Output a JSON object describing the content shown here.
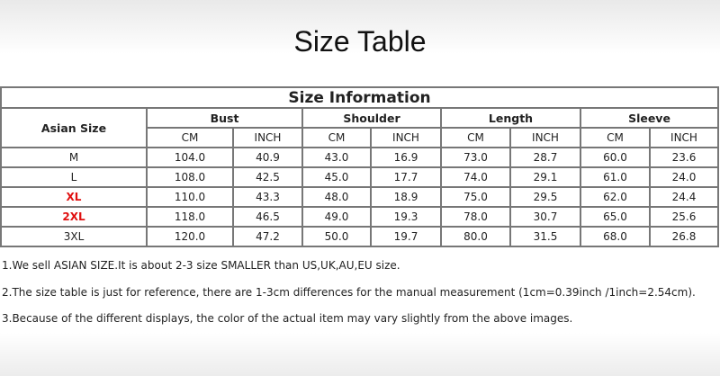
{
  "title": "Size Table",
  "table": {
    "caption": "Size Information",
    "size_header": "Asian Size",
    "groups": [
      "Bust",
      "Shoulder",
      "Length",
      "Sleeve"
    ],
    "units": [
      "CM",
      "INCH"
    ],
    "rows": [
      {
        "size": "M",
        "highlight": false,
        "values": [
          "104.0",
          "40.9",
          "43.0",
          "16.9",
          "73.0",
          "28.7",
          "60.0",
          "23.6"
        ]
      },
      {
        "size": "L",
        "highlight": false,
        "values": [
          "108.0",
          "42.5",
          "45.0",
          "17.7",
          "74.0",
          "29.1",
          "61.0",
          "24.0"
        ]
      },
      {
        "size": "XL",
        "highlight": true,
        "values": [
          "110.0",
          "43.3",
          "48.0",
          "18.9",
          "75.0",
          "29.5",
          "62.0",
          "24.4"
        ]
      },
      {
        "size": "2XL",
        "highlight": true,
        "values": [
          "118.0",
          "46.5",
          "49.0",
          "19.3",
          "78.0",
          "30.7",
          "65.0",
          "25.6"
        ]
      },
      {
        "size": "3XL",
        "highlight": false,
        "values": [
          "120.0",
          "47.2",
          "50.0",
          "19.7",
          "80.0",
          "31.5",
          "68.0",
          "26.8"
        ]
      }
    ]
  },
  "highlight_color": "#e01010",
  "notes": [
    "1.We sell ASIAN SIZE.It is about 2-3 size SMALLER than US,UK,AU,EU size.",
    "2.The size table is just for reference, there are 1-3cm differences for the manual measurement (1cm=0.39inch /1inch=2.54cm).",
    "3.Because of the different displays, the color of the actual item may vary slightly from the above images."
  ]
}
